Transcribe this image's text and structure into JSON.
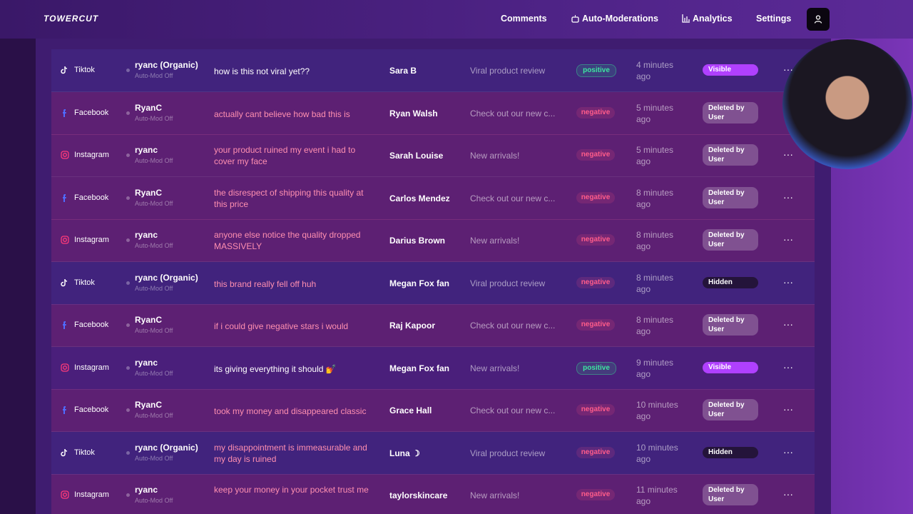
{
  "nav": {
    "logo": "TOWERCUT",
    "items": [
      "Comments",
      "Auto-Moderations",
      "Analytics",
      "Settings"
    ]
  },
  "rows": [
    {
      "platform": "Tiktok",
      "account": "ryanc (Organic)",
      "automod": "Auto-Mod Off",
      "comment": "how is this not viral yet??",
      "author": "Sara B",
      "post": "Viral product review",
      "sentiment": "positive",
      "time": "4 minutes ago",
      "status": "Visible"
    },
    {
      "platform": "Facebook",
      "account": "RyanC",
      "automod": "Auto-Mod Off",
      "comment": "actually cant believe how bad this is",
      "author": "Ryan Walsh",
      "post": "Check out our new c...",
      "sentiment": "negative",
      "time": "5 minutes ago",
      "status": "Deleted by User"
    },
    {
      "platform": "Instagram",
      "account": "ryanc",
      "automod": "Auto-Mod Off",
      "comment": "your product ruined my event i had to cover my face",
      "author": "Sarah Louise",
      "post": "New arrivals!",
      "sentiment": "negative",
      "time": "5 minutes ago",
      "status": "Deleted by User"
    },
    {
      "platform": "Facebook",
      "account": "RyanC",
      "automod": "Auto-Mod Off",
      "comment": "the disrespect of shipping this quality at this price",
      "author": "Carlos Mendez",
      "post": "Check out our new c...",
      "sentiment": "negative",
      "time": "8 minutes ago",
      "status": "Deleted by User"
    },
    {
      "platform": "Instagram",
      "account": "ryanc",
      "automod": "Auto-Mod Off",
      "comment": "anyone else notice the quality dropped MASSIVELY",
      "author": "Darius Brown",
      "post": "New arrivals!",
      "sentiment": "negative",
      "time": "8 minutes ago",
      "status": "Deleted by User"
    },
    {
      "platform": "Tiktok",
      "account": "ryanc (Organic)",
      "automod": "Auto-Mod Off",
      "comment": "this brand really fell off huh",
      "author": "Megan Fox fan",
      "post": "Viral product review",
      "sentiment": "negative",
      "time": "8 minutes ago",
      "status": "Hidden"
    },
    {
      "platform": "Facebook",
      "account": "RyanC",
      "automod": "Auto-Mod Off",
      "comment": "if i could give negative stars i would",
      "author": "Raj Kapoor",
      "post": "Check out our new c...",
      "sentiment": "negative",
      "time": "8 minutes ago",
      "status": "Deleted by User"
    },
    {
      "platform": "Instagram",
      "account": "ryanc",
      "automod": "Auto-Mod Off",
      "comment": "its giving everything it should 💅",
      "author": "Megan Fox fan",
      "post": "New arrivals!",
      "sentiment": "positive",
      "time": "9 minutes ago",
      "status": "Visible"
    },
    {
      "platform": "Facebook",
      "account": "RyanC",
      "automod": "Auto-Mod Off",
      "comment": "took my money and disappeared classic",
      "author": "Grace Hall",
      "post": "Check out our new c...",
      "sentiment": "negative",
      "time": "10 minutes ago",
      "status": "Deleted by User"
    },
    {
      "platform": "Tiktok",
      "account": "ryanc (Organic)",
      "automod": "Auto-Mod Off",
      "comment": "my disappointment is immeasurable and my day is ruined",
      "author": "Luna ☽",
      "post": "Viral product review",
      "sentiment": "negative",
      "time": "10 minutes ago",
      "status": "Hidden"
    },
    {
      "platform": "Instagram",
      "account": "ryanc",
      "automod": "Auto-Mod Off",
      "comment": "keep your money in your pocket trust me",
      "author": "taylorskincare",
      "post": "New arrivals!",
      "sentiment": "negative",
      "time": "11 minutes ago",
      "status": "Deleted by User"
    }
  ]
}
